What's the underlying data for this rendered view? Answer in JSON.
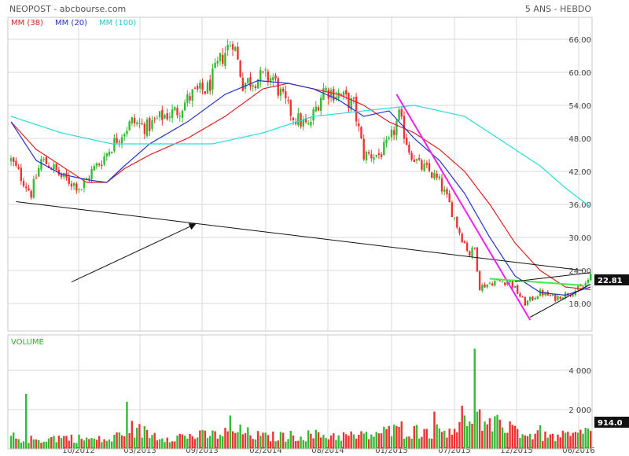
{
  "header": {
    "title": "NEOPOST - abcbourse.com",
    "period": "5 ANS - HEBDO"
  },
  "legend": [
    {
      "label": "MM (38)",
      "color": "#dd2222"
    },
    {
      "label": "MM (20)",
      "color": "#2233cc"
    },
    {
      "label": "MM (100)",
      "color": "#22dddd"
    }
  ],
  "volume_label": "VOLUME",
  "colors": {
    "up": "#33bb33",
    "down": "#ee3333",
    "grid": "#d8d8d8",
    "frame": "#c8c8c8",
    "trend": "#111111",
    "magenta": "#ee22ee",
    "green_line": "#44ee44",
    "badge": "#111111"
  },
  "chart_data": [
    {
      "type": "candlestick",
      "title": "NEOPOST - abcbourse.com",
      "period": "5 ANS - HEBDO",
      "x_labels": [
        "10/2012",
        "03/2013",
        "09/2013",
        "02/2014",
        "08/2014",
        "01/2015",
        "07/2015",
        "12/2015",
        "06/2016"
      ],
      "y_ticks": [
        18,
        24,
        30,
        36,
        42,
        48,
        54,
        60,
        66
      ],
      "ylim": [
        13,
        70
      ],
      "last_value": "22.81",
      "price_anchors": [
        [
          0,
          44
        ],
        [
          4,
          41
        ],
        [
          8,
          38
        ],
        [
          12,
          44
        ],
        [
          16,
          43
        ],
        [
          20,
          41
        ],
        [
          24,
          40
        ],
        [
          28,
          39
        ],
        [
          32,
          42
        ],
        [
          36,
          44
        ],
        [
          42,
          48
        ],
        [
          48,
          51
        ],
        [
          54,
          50
        ],
        [
          60,
          52
        ],
        [
          66,
          53
        ],
        [
          72,
          56
        ],
        [
          78,
          57
        ],
        [
          84,
          63
        ],
        [
          88,
          66
        ],
        [
          92,
          58
        ],
        [
          98,
          59
        ],
        [
          104,
          59
        ],
        [
          108,
          55
        ],
        [
          112,
          52
        ],
        [
          118,
          50
        ],
        [
          124,
          57
        ],
        [
          130,
          56
        ],
        [
          136,
          54
        ],
        [
          140,
          45
        ],
        [
          146,
          45
        ],
        [
          150,
          47
        ],
        [
          154,
          52
        ],
        [
          158,
          46
        ],
        [
          162,
          43
        ],
        [
          166,
          42
        ],
        [
          170,
          40
        ],
        [
          174,
          36
        ],
        [
          178,
          31
        ],
        [
          182,
          27
        ],
        [
          184,
          28
        ],
        [
          186,
          21
        ],
        [
          192,
          22
        ],
        [
          198,
          22
        ],
        [
          204,
          18
        ],
        [
          210,
          20
        ],
        [
          216,
          19
        ],
        [
          222,
          20
        ],
        [
          227,
          21
        ],
        [
          230,
          22.81
        ]
      ],
      "moving_averages": [
        {
          "name": "MM (38)",
          "color": "#dd2222",
          "points": [
            [
              0,
              51
            ],
            [
              10,
              46
            ],
            [
              20,
              43
            ],
            [
              30,
              40
            ],
            [
              38,
              40
            ],
            [
              45,
              42.5
            ],
            [
              55,
              45
            ],
            [
              70,
              48
            ],
            [
              85,
              52
            ],
            [
              100,
              57
            ],
            [
              110,
              58
            ],
            [
              120,
              57
            ],
            [
              130,
              56
            ],
            [
              140,
              54
            ],
            [
              150,
              51
            ],
            [
              160,
              49
            ],
            [
              170,
              46
            ],
            [
              180,
              42
            ],
            [
              190,
              36
            ],
            [
              200,
              29
            ],
            [
              210,
              24
            ],
            [
              220,
              21
            ],
            [
              230,
              20.5
            ]
          ]
        },
        {
          "name": "MM (20)",
          "color": "#2233cc",
          "points": [
            [
              0,
              51
            ],
            [
              10,
              44
            ],
            [
              20,
              41.5
            ],
            [
              30,
              40.5
            ],
            [
              38,
              40
            ],
            [
              45,
              43
            ],
            [
              55,
              47
            ],
            [
              70,
              51
            ],
            [
              85,
              56
            ],
            [
              98,
              58.5
            ],
            [
              110,
              58
            ],
            [
              120,
              57
            ],
            [
              130,
              55
            ],
            [
              140,
              52
            ],
            [
              150,
              53
            ],
            [
              160,
              48
            ],
            [
              170,
              44
            ],
            [
              180,
              38
            ],
            [
              190,
              30
            ],
            [
              200,
              23
            ],
            [
              210,
              20
            ],
            [
              220,
              19.5
            ],
            [
              230,
              21
            ]
          ]
        },
        {
          "name": "MM (100)",
          "color": "#22dddd",
          "points": [
            [
              0,
              52
            ],
            [
              20,
              49
            ],
            [
              40,
              47
            ],
            [
              60,
              47
            ],
            [
              80,
              47
            ],
            [
              100,
              49
            ],
            [
              120,
              52
            ],
            [
              140,
              53
            ],
            [
              160,
              54
            ],
            [
              170,
              53
            ],
            [
              180,
              52
            ],
            [
              190,
              49
            ],
            [
              200,
              46
            ],
            [
              210,
              43
            ],
            [
              220,
              39
            ],
            [
              230,
              35.5
            ]
          ]
        }
      ],
      "drawn_lines": [
        {
          "name": "long-support-line",
          "color": "#111111",
          "points": [
            [
              2,
              36.5
            ],
            [
              227,
              24
            ]
          ]
        },
        {
          "name": "magenta-trendline",
          "color": "#ee22ee",
          "points": [
            [
              153,
              56
            ],
            [
              206,
              15
            ]
          ]
        },
        {
          "name": "green-horizontal-line",
          "color": "#44ee44",
          "points": [
            [
              190,
              22.5
            ],
            [
              227,
              21.3
            ]
          ]
        },
        {
          "name": "triangle-upper-line",
          "color": "#111111",
          "points": [
            [
              200,
              22
            ],
            [
              230,
              23.6
            ]
          ]
        },
        {
          "name": "triangle-lower-line",
          "color": "#111111",
          "points": [
            [
              206,
              15.5
            ],
            [
              230,
              21.5
            ]
          ]
        },
        {
          "name": "annotation-arrow",
          "color": "#111111",
          "points": [
            [
              24,
              21.9
            ],
            [
              73,
              32.4
            ]
          ]
        }
      ]
    },
    {
      "type": "bar",
      "title": "VOLUME",
      "y_ticks": [
        2000,
        4000
      ],
      "ylim": [
        0,
        5800
      ],
      "last_value": "914.0",
      "volume_anchors": [
        [
          0,
          600
        ],
        [
          10,
          450
        ],
        [
          20,
          600
        ],
        [
          30,
          500
        ],
        [
          40,
          450
        ],
        [
          46,
          1100
        ],
        [
          60,
          600
        ],
        [
          80,
          700
        ],
        [
          90,
          900
        ],
        [
          100,
          600
        ],
        [
          120,
          700
        ],
        [
          140,
          650
        ],
        [
          150,
          900
        ],
        [
          160,
          900
        ],
        [
          170,
          900
        ],
        [
          180,
          1300
        ],
        [
          184,
          2100
        ],
        [
          188,
          1000
        ],
        [
          195,
          1300
        ],
        [
          205,
          700
        ],
        [
          215,
          600
        ],
        [
          225,
          700
        ],
        [
          230,
          914
        ]
      ],
      "volume_spikes": [
        [
          6,
          2800
        ],
        [
          46,
          2400
        ],
        [
          87,
          1700
        ],
        [
          155,
          1400
        ],
        [
          168,
          1900
        ],
        [
          179,
          2200
        ],
        [
          184,
          5100
        ],
        [
          195,
          1100
        ],
        [
          198,
          1400
        ],
        [
          210,
          1200
        ]
      ]
    }
  ]
}
